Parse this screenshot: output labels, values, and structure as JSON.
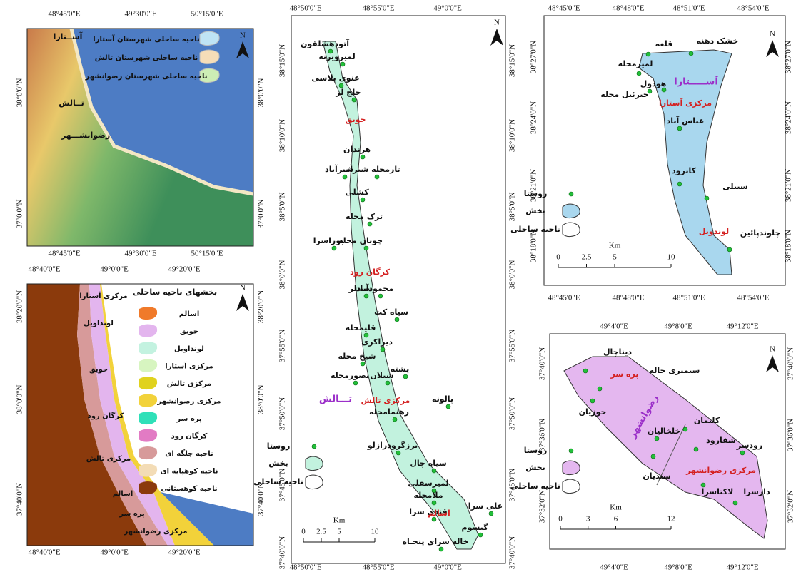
{
  "panels": [
    {
      "north": "N",
      "top_ticks": [
        "48°45'0\"E",
        "49°30'0\"E",
        "50°15'0\"E"
      ],
      "side_ticks": [
        "38°0'0\"N",
        "37°0'0\"N"
      ],
      "legend": [
        "ناحیه ساحلی شهرستان آستارا",
        "ناحیه ساحلی شهرستان تالش",
        "ناحیه ساحلی شهرستان رضوانشهر"
      ],
      "places": [
        "آســتارا",
        "تــالش",
        "رضوانشـــهر"
      ]
    },
    {
      "north": "N",
      "top_ticks": [
        "48°40'0\"E",
        "49°0'0\"E",
        "49°20'0\"E"
      ],
      "side_ticks": [
        "38°20'0\"N",
        "38°0'0\"N",
        "37°40'0\"N"
      ],
      "legend_title": "بخشهای ناحیه ساحلی",
      "legend": [
        {
          "label": "اسالم",
          "color": "#f07a2a"
        },
        {
          "label": "حویق",
          "color": "#e3b5ee"
        },
        {
          "label": "لونداویل",
          "color": "#c3f2e0"
        },
        {
          "label": "مرکزی آستارا",
          "color": "#d7f5c0"
        },
        {
          "label": "مرکزی تالش",
          "color": "#e0d21e"
        },
        {
          "label": "مرکزی رضوانشهر",
          "color": "#f2d23a"
        },
        {
          "label": "پره سر",
          "color": "#2fe0b8"
        },
        {
          "label": "کرگان رود",
          "color": "#e27bc4"
        },
        {
          "label": "ناحیه جلگه ای",
          "color": "#d79a9a"
        },
        {
          "label": "ناحیه کوهپایه ای",
          "color": "#f3dcb6"
        },
        {
          "label": "ناحیه کوهستانی",
          "color": "#8b3a0c"
        }
      ],
      "places": [
        "مرکزی آستارا",
        "لونداویل",
        "حویق",
        "کرگان رود",
        "مرکزی تالش",
        "اسالم",
        "پره سر",
        "مرکزی رضوانشهر"
      ]
    },
    {
      "north": "N",
      "top_ticks": [
        "48°50'0\"E",
        "48°55'0\"E",
        "49°0'0\"E"
      ],
      "side_ticks": [
        "38°15'0\"N",
        "38°10'0\"N",
        "38°5'0\"N",
        "38°0'0\"N",
        "37°55'0\"N",
        "37°50'0\"N",
        "37°45'0\"N",
        "37°40'0\"N"
      ],
      "villages": [
        "آتودهشلقون",
        "لمیرویزنه",
        "عنوی پلاسی",
        "خلج لر",
        "هرندان",
        "شیرآباد",
        "تارمحله شیرآب",
        "کشلی",
        "ترک محله",
        "بوراسرا",
        "چوبان محله",
        "سیدلر",
        "محمودآباد",
        "سیاه کت",
        "قلیمحله",
        "دیراکری",
        "شیخ محله",
        "پشته",
        "شیلان",
        "نصورمحله",
        "پالونه",
        "رهنمامحله",
        "برزگرودرازلو",
        "سیاه چال",
        "لمیرسفلی",
        "ملامحله",
        "علی سرا",
        "قندی سرا",
        "گیسوم",
        "خاله سرای پنجـاه"
      ],
      "divisions": [
        "حویق",
        "کرگان رود",
        "مرکزی تالش",
        "اسالم"
      ],
      "county": "تـــالش",
      "legend": [
        "روستا",
        "بخش",
        "ناحیه ساحلی"
      ],
      "scale_unit": "Km",
      "scale_ticks": [
        0,
        2.5,
        5,
        10
      ]
    },
    {
      "north": "N",
      "top_ticks": [
        "48°45'0\"E",
        "48°48'0\"E",
        "48°51'0\"E",
        "48°54'0\"E"
      ],
      "side_ticks": [
        "38°27'0\"N",
        "38°24'0\"N",
        "38°21'0\"N",
        "38°18'0\"N"
      ],
      "villages": [
        "خشک دهنه",
        "قلعه",
        "لمیرمحله",
        "جبرئیل محله",
        "هودول",
        "عباس آباد",
        "کانرود",
        "سیبلی",
        "چلوندپائین"
      ],
      "divisions": [
        "مرکزی آستارا",
        "لوندویل"
      ],
      "county": "آســـــتارا",
      "legend": [
        "روستا",
        "بخش",
        "ناحیه ساحلی"
      ],
      "scale_unit": "Km",
      "scale_ticks": [
        0,
        2.5,
        5,
        10
      ]
    },
    {
      "north": "N",
      "top_ticks": [
        "49°4'0\"E",
        "49°8'0\"E",
        "49°12'0\"E"
      ],
      "side_ticks": [
        "37°40'0\"N",
        "37°36'0\"N",
        "37°32'0\"N"
      ],
      "villages": [
        "دیناچال",
        "سیمبری خاله",
        "حوزیان",
        "کلیمان",
        "خلخالیان",
        "شفارود",
        "رودسر",
        "سندیان",
        "لاکتاسرا",
        "دارسرا"
      ],
      "divisions": [
        "پره سر",
        "مرکزی رضوانشهر"
      ],
      "county": "رضوانشهر",
      "legend": [
        "روستا",
        "بخش",
        "ناحیه ساحلی"
      ],
      "scale_unit": "Km",
      "scale_ticks": [
        0,
        3,
        6,
        12
      ]
    }
  ]
}
